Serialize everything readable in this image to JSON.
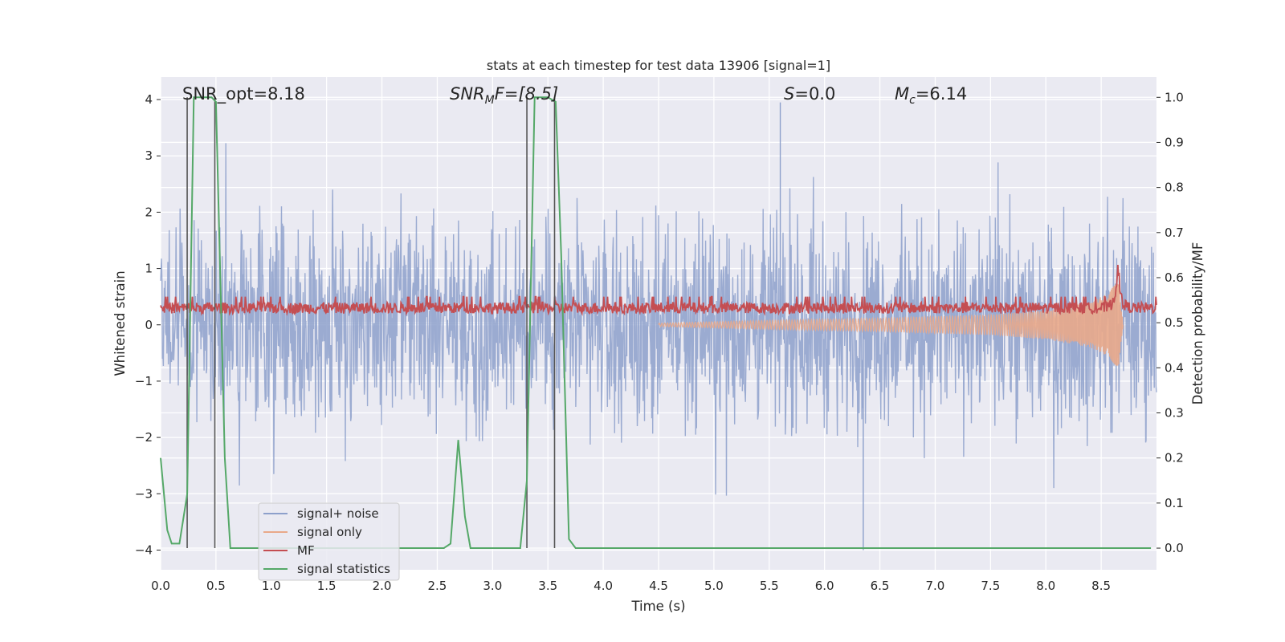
{
  "chart_data": {
    "type": "line",
    "title": "stats at each timestep for test data 13906 [signal=1]",
    "xlabel": "Time (s)",
    "ylabel_left": "Whitened strain",
    "ylabel_right": "Detection probability/MF",
    "xlim": [
      0.0,
      9.0
    ],
    "ylim_left": [
      -4.35,
      4.4
    ],
    "ylim_right": [
      -0.048,
      1.045
    ],
    "xticks": [
      "0.0",
      "0.5",
      "1.0",
      "1.5",
      "2.0",
      "2.5",
      "3.0",
      "3.5",
      "4.0",
      "4.5",
      "5.0",
      "5.5",
      "6.0",
      "6.5",
      "7.0",
      "7.5",
      "8.0",
      "8.5"
    ],
    "yticks_left": [
      "4",
      "3",
      "2",
      "1",
      "0",
      "−1",
      "−2",
      "−3",
      "−4"
    ],
    "yticks_right": [
      "1.0",
      "0.9",
      "0.8",
      "0.7",
      "0.6",
      "0.5",
      "0.4",
      "0.3",
      "0.2",
      "0.1",
      "0.0"
    ],
    "annotations": {
      "snr_opt": "SNR_opt=8.18",
      "snr_mf_base": "SNR",
      "snr_mf_sub": "M",
      "snr_mf_rest": "F=[8.5]",
      "s_sym": "S",
      "s_rest": "=0.0",
      "mc_sym": "M",
      "mc_sub": "c",
      "mc_rest": "=6.14"
    },
    "legend": {
      "position": "lower-left",
      "entries": [
        {
          "label": "signal+ noise",
          "color": "#8da0cb"
        },
        {
          "label": "signal only",
          "color": "#e9a98a"
        },
        {
          "label": "MF",
          "color": "#c44e52"
        },
        {
          "label": "signal statistics",
          "color": "#55a868"
        }
      ]
    },
    "series": [
      {
        "name": "signal statistics",
        "axis": "right",
        "color": "#55a868",
        "x": [
          0.0,
          0.06,
          0.1,
          0.17,
          0.24,
          0.3,
          0.38,
          0.46,
          0.5,
          0.58,
          0.63,
          0.7,
          2.56,
          2.62,
          2.69,
          2.75,
          2.8,
          3.25,
          3.31,
          3.38,
          3.5,
          3.57,
          3.62,
          3.69,
          3.75,
          8.95
        ],
        "y": [
          0.2,
          0.04,
          0.01,
          0.01,
          0.12,
          1.0,
          1.0,
          1.0,
          0.99,
          0.2,
          0.0,
          0.0,
          0.0,
          0.01,
          0.24,
          0.07,
          0.0,
          0.0,
          0.15,
          1.0,
          1.0,
          0.99,
          0.65,
          0.02,
          0.0,
          0.0
        ]
      },
      {
        "name": "detection markers",
        "axis": "right",
        "color": "#555555",
        "x": [
          0.24,
          0.49,
          3.31,
          3.56
        ],
        "y": [
          1.0,
          1.0,
          1.0,
          1.0
        ]
      },
      {
        "name": "signal only",
        "axis": "left",
        "color": "#e9a98a",
        "description_of_shape": "chirp amplitude envelope from 4.5 s growing to peak at merger",
        "x": [
          4.5,
          5.5,
          6.5,
          7.5,
          8.0,
          8.4,
          8.55,
          8.63,
          8.66,
          8.7
        ],
        "y": [
          0.03,
          0.08,
          0.12,
          0.18,
          0.26,
          0.4,
          0.55,
          0.72,
          0.75,
          0.0
        ]
      },
      {
        "name": "MF",
        "axis": "left",
        "color": "#c44e52",
        "typical_range": [
          0.1,
          0.5
        ],
        "peak_time": 8.65,
        "peak_value": 1.0
      },
      {
        "name": "signal+ noise",
        "axis": "left",
        "color": "#8da0cb",
        "typical_range": [
          -2.9,
          3.3
        ],
        "extremes": {
          "max": 3.95,
          "max_time": 5.6,
          "min": -4.0,
          "min_time": 6.35
        }
      }
    ]
  }
}
